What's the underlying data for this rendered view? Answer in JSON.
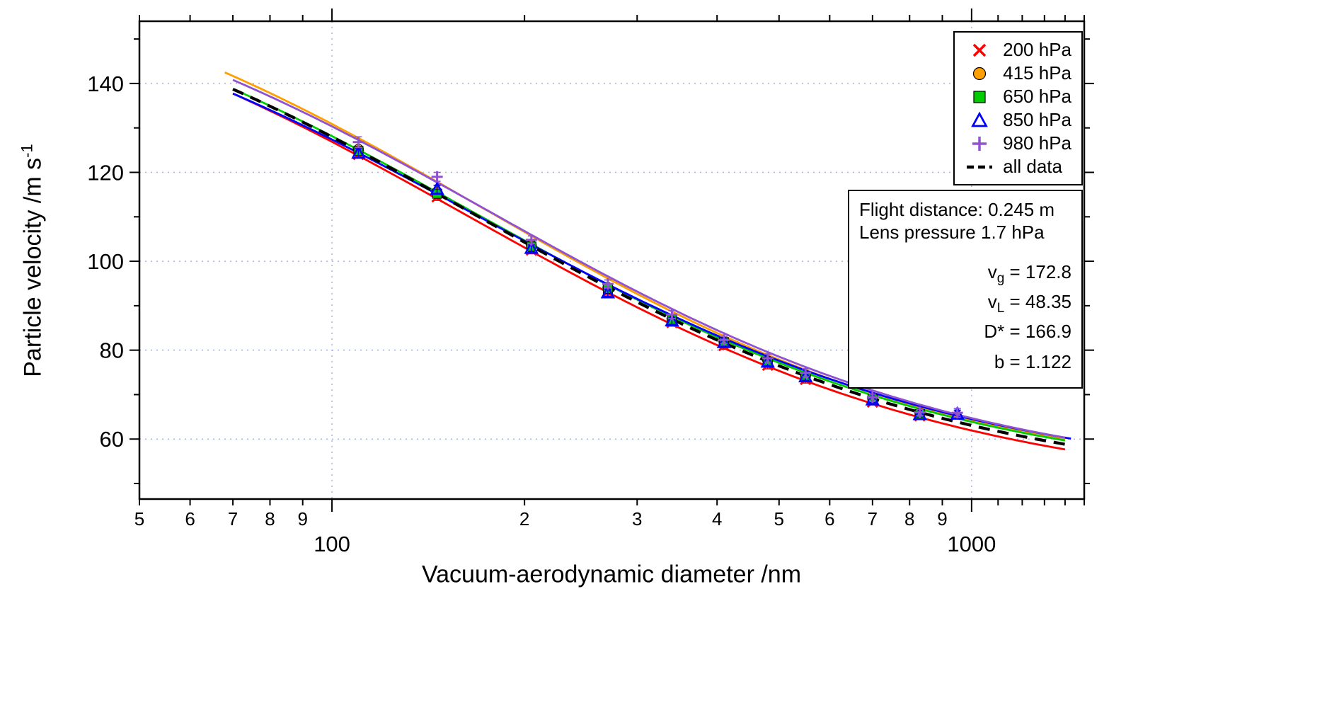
{
  "chart_data": {
    "type": "scatter",
    "title": "",
    "xlabel": "Vacuum-aerodynamic diameter /nm",
    "ylabel_base": "Particle velocity /m s",
    "ylabel_sup": "-1",
    "x_axis": {
      "scale": "log",
      "min": 50,
      "max": 1500,
      "ticks": [
        {
          "v": 50,
          "label": "5"
        },
        {
          "v": 60,
          "label": "6"
        },
        {
          "v": 70,
          "label": "7"
        },
        {
          "v": 80,
          "label": "8"
        },
        {
          "v": 90,
          "label": "9"
        },
        {
          "v": 100,
          "label": "100",
          "decade": true
        },
        {
          "v": 200,
          "label": "2"
        },
        {
          "v": 300,
          "label": "3"
        },
        {
          "v": 400,
          "label": "4"
        },
        {
          "v": 500,
          "label": "5"
        },
        {
          "v": 600,
          "label": "6"
        },
        {
          "v": 700,
          "label": "7"
        },
        {
          "v": 800,
          "label": "8"
        },
        {
          "v": 900,
          "label": "9"
        },
        {
          "v": 1000,
          "label": "1000",
          "decade": true
        },
        {
          "v": 1100
        },
        {
          "v": 1200
        },
        {
          "v": 1300
        },
        {
          "v": 1400
        },
        {
          "v": 1500
        }
      ]
    },
    "y_axis": {
      "min": 46.5,
      "max": 154,
      "ticks": [
        {
          "v": 60,
          "label": "60"
        },
        {
          "v": 80,
          "label": "80"
        },
        {
          "v": 100,
          "label": "100"
        },
        {
          "v": 120,
          "label": "120"
        },
        {
          "v": 140,
          "label": "140"
        }
      ],
      "minor_ticks": [
        50,
        70,
        90,
        110,
        130,
        150
      ]
    },
    "grid": {
      "color": "#a8b0e0",
      "x_values": [
        100,
        1000
      ],
      "y_values": [
        60,
        80,
        100,
        120,
        140
      ]
    },
    "series": [
      {
        "label": "200 hPa",
        "marker": "x",
        "color": "#ff0000",
        "x": [
          110,
          146,
          205,
          270,
          340,
          410,
          480,
          550,
          700,
          830
        ],
        "y": [
          124.0,
          114.5,
          102.5,
          93.2,
          86.2,
          81.0,
          76.6,
          73.4,
          68.3,
          65.2
        ],
        "yerr": [
          0.8,
          0.8,
          0.8,
          0.8,
          0.8,
          0.8,
          0.8,
          0.8,
          0.6,
          0.6
        ],
        "fit": {
          "vg": 173.0,
          "vL": 47.0,
          "Dstar": 164,
          "b": 1.11,
          "xrange": [
            70,
            1400
          ]
        }
      },
      {
        "label": "415 hPa",
        "marker": "circle",
        "color": "#ffa000",
        "x": [
          110,
          146,
          205,
          270,
          340,
          410,
          480,
          550,
          700,
          830
        ],
        "y": [
          125.2,
          115.6,
          103.6,
          94.1,
          87.0,
          81.8,
          77.6,
          74.1,
          69.2,
          65.8
        ],
        "yerr": [
          0.8,
          0.8,
          0.8,
          0.8,
          0.8,
          0.8,
          0.8,
          0.8,
          0.6,
          0.6
        ],
        "fit": {
          "vg": 174.0,
          "vL": 50.0,
          "Dstar": 172,
          "b": 1.16,
          "xrange": [
            68,
            1400
          ]
        }
      },
      {
        "label": "650 hPa",
        "marker": "square",
        "color": "#00cc00",
        "x": [
          110,
          146,
          205,
          270,
          340,
          410,
          480,
          550,
          700,
          830
        ],
        "y": [
          124.8,
          115.2,
          103.3,
          93.8,
          86.8,
          81.8,
          77.4,
          74.0,
          69.0,
          65.6
        ],
        "yerr": [
          0.8,
          0.8,
          0.8,
          0.8,
          0.8,
          0.8,
          0.8,
          0.8,
          0.6,
          0.6
        ],
        "fit": {
          "vg": 172.5,
          "vL": 49.3,
          "Dstar": 167,
          "b": 1.122,
          "xrange": [
            70,
            1400
          ]
        }
      },
      {
        "label": "850 hPa",
        "marker": "triangle",
        "color": "#0000ff",
        "x": [
          110,
          146,
          205,
          270,
          340,
          410,
          480,
          550,
          700,
          830,
          950
        ],
        "y": [
          124.3,
          116.2,
          102.9,
          92.9,
          86.6,
          81.7,
          77.3,
          74.0,
          68.8,
          65.5,
          65.6
        ],
        "yerr": [
          1.0,
          0.9,
          0.8,
          0.8,
          0.8,
          0.8,
          0.8,
          0.8,
          0.6,
          0.6,
          0.9
        ],
        "fit": {
          "vg": 171.0,
          "vL": 49.8,
          "Dstar": 168,
          "b": 1.11,
          "xrange": [
            70,
            1430
          ]
        }
      },
      {
        "label": "980 hPa",
        "marker": "plus",
        "color": "#9152d0",
        "x": [
          110,
          146,
          205,
          270,
          340,
          410,
          480,
          550,
          700,
          830,
          950
        ],
        "y": [
          126.8,
          119.0,
          104.8,
          94.9,
          88.0,
          82.3,
          78.2,
          74.9,
          69.4,
          66.0,
          65.9
        ],
        "yerr": [
          1.2,
          1.0,
          0.9,
          0.9,
          0.9,
          0.8,
          0.9,
          0.9,
          0.7,
          0.7,
          1.0
        ],
        "fit": {
          "vg": 173.0,
          "vL": 49.5,
          "Dstar": 176,
          "b": 1.13,
          "xrange": [
            70,
            1400
          ]
        }
      }
    ],
    "fit_all": {
      "label": "all data",
      "color": "#000000",
      "fit": {
        "vg": 172.8,
        "vL": 48.35,
        "Dstar": 166.9,
        "b": 1.122,
        "xrange": [
          70,
          1400
        ]
      }
    },
    "annotation": {
      "line1": "Flight distance: 0.245 m",
      "line2": "Lens pressure 1.7 hPa",
      "params": [
        {
          "sym": "v",
          "sub": "g",
          "rest": " = 172.8"
        },
        {
          "sym": "v",
          "sub": "L",
          "rest": " = 48.35"
        },
        {
          "sym": "D*",
          "sub": "",
          "rest": " = 166.9"
        },
        {
          "sym": "b",
          "sub": "",
          "rest": " = 1.122"
        }
      ]
    }
  }
}
